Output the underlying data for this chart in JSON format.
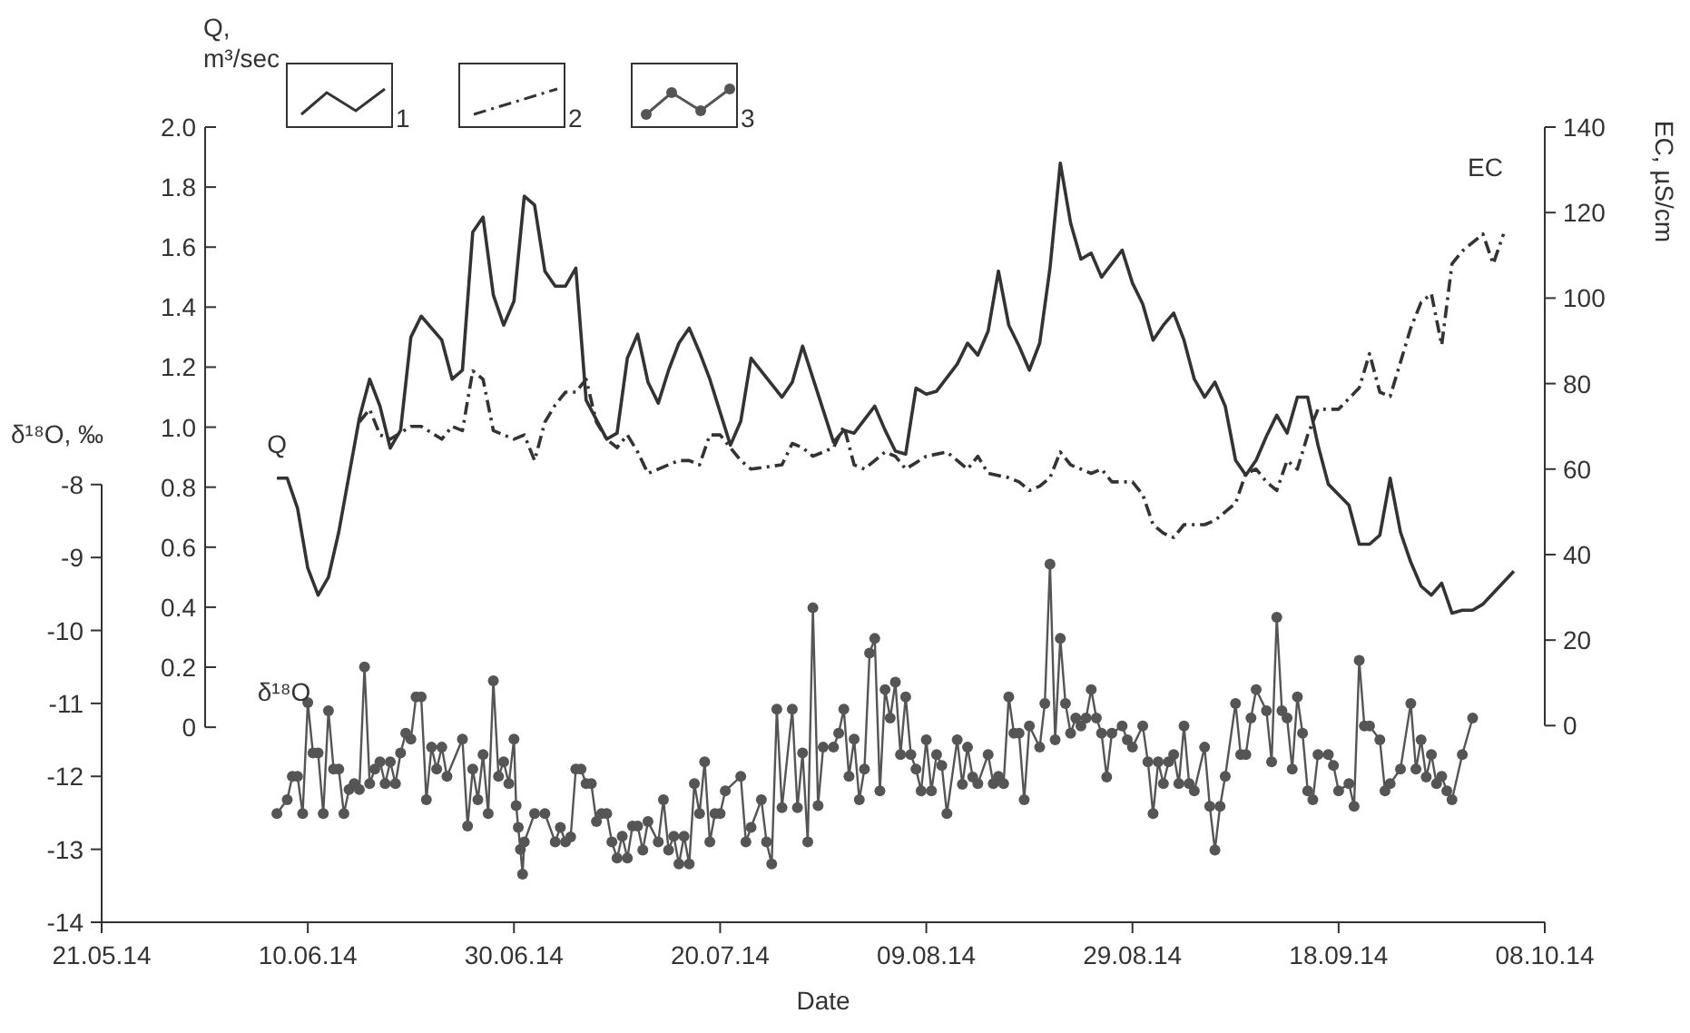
{
  "chart_data": {
    "type": "line",
    "xlabel": "Date",
    "ylabel": "Q, m³/sec",
    "y2label": "EC, µS/cm",
    "y3label": "δ¹⁸O, ‰",
    "xlim": [
      "2014-05-21",
      "2014-10-08"
    ],
    "xticks": [
      {
        "value": "2014-05-21",
        "label": "21.05.14"
      },
      {
        "value": "2014-06-10",
        "label": "10.06.14"
      },
      {
        "value": "2014-06-30",
        "label": "30.06.14"
      },
      {
        "value": "2014-07-20",
        "label": "20.07.14"
      },
      {
        "value": "2014-08-09",
        "label": "09.08.14"
      },
      {
        "value": "2014-08-29",
        "label": "29.08.14"
      },
      {
        "value": "2014-09-18",
        "label": "18.09.14"
      },
      {
        "value": "2014-10-08",
        "label": "08.10.14"
      }
    ],
    "ylim": [
      -0.65,
      2
    ],
    "yticks": [
      0,
      0.2,
      0.4,
      0.6,
      0.8,
      {
        "value": 1,
        "label": "1.0"
      },
      1.2,
      1.4,
      1.6,
      1.8,
      {
        "value": 2,
        "label": "2.0"
      }
    ],
    "y2lim": [
      -46,
      140
    ],
    "y2ticks": [
      0,
      20,
      40,
      60,
      80,
      100,
      120,
      140
    ],
    "y3lim": [
      -14,
      -3.1
    ],
    "y3ticks": [
      -14,
      -13,
      -12,
      -11,
      -10,
      -9,
      -8
    ],
    "grid": false,
    "legend": "top left",
    "annotations": [
      "Q",
      "EC",
      "δ¹⁸O"
    ],
    "series": [
      {
        "name": "1",
        "color": "#333333",
        "line_style": "solid",
        "marker": "none",
        "x": [
          "2014-06-07",
          "2014-06-08",
          "2014-06-09",
          "2014-06-10",
          "2014-06-11",
          "2014-06-12",
          "2014-06-13",
          "2014-06-15",
          "2014-06-16",
          "2014-06-17",
          "2014-06-18",
          "2014-06-19",
          "2014-06-20",
          "2014-06-21",
          "2014-06-23",
          "2014-06-24",
          "2014-06-25",
          "2014-06-26",
          "2014-06-27",
          "2014-06-28",
          "2014-06-29",
          "2014-06-30",
          "2014-07-01",
          "2014-07-02",
          "2014-07-03",
          "2014-07-04",
          "2014-07-05",
          "2014-07-06",
          "2014-07-07",
          "2014-07-09",
          "2014-07-10",
          "2014-07-11",
          "2014-07-12",
          "2014-07-13",
          "2014-07-14",
          "2014-07-15",
          "2014-07-16",
          "2014-07-17",
          "2014-07-18",
          "2014-07-19",
          "2014-07-21",
          "2014-07-22",
          "2014-07-23",
          "2014-07-26",
          "2014-07-27",
          "2014-07-28",
          "2014-07-31",
          "2014-08-01",
          "2014-08-02",
          "2014-08-04",
          "2014-08-05",
          "2014-08-06",
          "2014-08-07",
          "2014-08-08",
          "2014-08-09",
          "2014-08-10",
          "2014-08-12",
          "2014-08-13",
          "2014-08-14",
          "2014-08-15",
          "2014-08-16",
          "2014-08-17",
          "2014-08-18",
          "2014-08-19",
          "2014-08-20",
          "2014-08-21",
          "2014-08-22",
          "2014-08-23",
          "2014-08-24",
          "2014-08-25",
          "2014-08-26",
          "2014-08-28",
          "2014-08-29",
          "2014-08-30",
          "2014-08-31",
          "2014-09-01",
          "2014-09-02",
          "2014-09-03",
          "2014-09-04",
          "2014-09-05",
          "2014-09-06",
          "2014-09-07",
          "2014-09-08",
          "2014-09-09",
          "2014-09-10",
          "2014-09-11",
          "2014-09-12",
          "2014-09-13",
          "2014-09-14",
          "2014-09-15",
          "2014-09-16",
          "2014-09-17",
          "2014-09-19",
          "2014-09-20",
          "2014-09-21",
          "2014-09-22",
          "2014-09-23",
          "2014-09-24",
          "2014-09-25",
          "2014-09-26",
          "2014-09-27",
          "2014-09-28",
          "2014-09-29",
          "2014-09-30",
          "2014-10-01",
          "2014-10-02",
          "2014-10-05"
        ],
        "values": [
          0.83,
          0.83,
          0.73,
          0.53,
          0.44,
          0.5,
          0.65,
          1.03,
          1.16,
          1.07,
          0.93,
          0.99,
          1.3,
          1.37,
          1.29,
          1.16,
          1.19,
          1.65,
          1.7,
          1.44,
          1.34,
          1.42,
          1.77,
          1.74,
          1.52,
          1.47,
          1.47,
          1.53,
          1.09,
          0.96,
          0.98,
          1.23,
          1.31,
          1.15,
          1.08,
          1.19,
          1.28,
          1.33,
          1.25,
          1.16,
          0.94,
          1.02,
          1.23,
          1.1,
          1.15,
          1.27,
          0.95,
          0.99,
          0.98,
          1.07,
          0.99,
          0.92,
          0.91,
          1.13,
          1.11,
          1.12,
          1.21,
          1.28,
          1.24,
          1.32,
          1.52,
          1.34,
          1.27,
          1.19,
          1.28,
          1.53,
          1.88,
          1.68,
          1.56,
          1.58,
          1.5,
          1.59,
          1.48,
          1.41,
          1.29,
          1.34,
          1.38,
          1.29,
          1.16,
          1.1,
          1.15,
          1.07,
          0.89,
          0.84,
          0.89,
          0.97,
          1.04,
          0.98,
          1.1,
          1.1,
          0.94,
          0.81,
          0.74,
          0.61,
          0.61,
          0.64,
          0.83,
          0.65,
          0.55,
          0.47,
          0.44,
          0.48,
          0.38,
          0.39,
          0.39,
          0.41,
          0.52
        ]
      },
      {
        "name": "2",
        "color": "#333333",
        "axis": "y2",
        "line_style": "dashed",
        "marker": "none",
        "x": [
          "2014-06-15",
          "2014-06-16",
          "2014-06-17",
          "2014-06-18",
          "2014-06-20",
          "2014-06-21",
          "2014-06-23",
          "2014-06-24",
          "2014-06-25",
          "2014-06-26",
          "2014-06-27",
          "2014-06-28",
          "2014-06-30",
          "2014-07-01",
          "2014-07-02",
          "2014-07-03",
          "2014-07-04",
          "2014-07-05",
          "2014-07-06",
          "2014-07-07",
          "2014-07-08",
          "2014-07-09",
          "2014-07-10",
          "2014-07-11",
          "2014-07-12",
          "2014-07-13",
          "2014-07-15",
          "2014-07-16",
          "2014-07-17",
          "2014-07-18",
          "2014-07-19",
          "2014-07-20",
          "2014-07-22",
          "2014-07-23",
          "2014-07-26",
          "2014-07-27",
          "2014-07-28",
          "2014-07-29",
          "2014-07-30",
          "2014-07-31",
          "2014-08-01",
          "2014-08-02",
          "2014-08-03",
          "2014-08-04",
          "2014-08-05",
          "2014-08-06",
          "2014-08-07",
          "2014-08-09",
          "2014-08-11",
          "2014-08-12",
          "2014-08-13",
          "2014-08-14",
          "2014-08-15",
          "2014-08-17",
          "2014-08-18",
          "2014-08-19",
          "2014-08-20",
          "2014-08-21",
          "2014-08-22",
          "2014-08-23",
          "2014-08-25",
          "2014-08-26",
          "2014-08-27",
          "2014-08-29",
          "2014-08-30",
          "2014-08-31",
          "2014-09-01",
          "2014-09-02",
          "2014-09-03",
          "2014-09-05",
          "2014-09-06",
          "2014-09-08",
          "2014-09-09",
          "2014-09-10",
          "2014-09-11",
          "2014-09-12",
          "2014-09-13",
          "2014-09-14",
          "2014-09-15",
          "2014-09-16",
          "2014-09-18",
          "2014-09-20",
          "2014-09-21",
          "2014-09-22",
          "2014-09-23",
          "2014-09-24",
          "2014-09-25",
          "2014-09-26",
          "2014-09-27",
          "2014-09-28",
          "2014-09-29",
          "2014-09-30",
          "2014-10-02",
          "2014-10-03",
          "2014-10-04"
        ],
        "values": [
          71,
          74,
          68,
          67,
          70,
          70,
          67,
          70,
          69,
          83,
          81,
          69,
          67,
          68,
          62,
          71,
          75,
          78,
          78,
          81,
          71,
          67,
          65,
          68,
          64,
          59,
          61,
          62,
          62,
          61,
          68,
          68,
          62,
          60,
          61,
          66,
          65,
          63,
          64,
          65,
          70,
          61,
          60,
          62,
          64,
          63,
          60,
          63,
          64,
          62,
          60,
          63,
          59,
          58,
          57,
          55,
          56,
          58,
          64,
          61,
          59,
          60,
          57,
          57,
          54,
          47,
          45,
          44,
          47,
          47,
          48,
          52,
          59,
          60,
          57,
          55,
          62,
          60,
          68,
          74,
          74,
          79,
          87,
          78,
          77,
          85,
          93,
          99,
          101,
          89,
          108,
          111,
          115,
          108,
          115
        ]
      },
      {
        "name": "3",
        "color": "#555555",
        "axis": "y3",
        "line_style": "solid",
        "marker": "circle",
        "x": [
          "2014-06-07",
          "2014-06-08",
          "2014-06-08T12:00",
          "2014-06-09",
          "2014-06-09T12:00",
          "2014-06-10",
          "2014-06-10T12:00",
          "2014-06-11",
          "2014-06-11T12:00",
          "2014-06-12",
          "2014-06-12T12:00",
          "2014-06-13",
          "2014-06-13T12:00",
          "2014-06-14",
          "2014-06-14T12:00",
          "2014-06-15",
          "2014-06-15T12:00",
          "2014-06-16",
          "2014-06-16T12:00",
          "2014-06-17",
          "2014-06-17T12:00",
          "2014-06-18",
          "2014-06-18T12:00",
          "2014-06-19",
          "2014-06-19T12:00",
          "2014-06-20",
          "2014-06-20T12:00",
          "2014-06-21",
          "2014-06-21T12:00",
          "2014-06-22",
          "2014-06-22T12:00",
          "2014-06-23",
          "2014-06-23T12:00",
          "2014-06-25",
          "2014-06-25T12:00",
          "2014-06-26",
          "2014-06-26T12:00",
          "2014-06-27",
          "2014-06-27T12:00",
          "2014-06-28",
          "2014-06-28T12:00",
          "2014-06-29",
          "2014-06-29T12:00",
          "2014-06-30",
          "2014-06-30T05:00",
          "2014-06-30T10:00",
          "2014-06-30T15:00",
          "2014-06-30T20:00",
          "2014-07-01",
          "2014-07-02",
          "2014-07-03",
          "2014-07-04",
          "2014-07-04T12:00",
          "2014-07-05",
          "2014-07-05T12:00",
          "2014-07-06",
          "2014-07-06T12:00",
          "2014-07-07",
          "2014-07-07T12:00",
          "2014-07-08",
          "2014-07-08T12:00",
          "2014-07-09",
          "2014-07-09T12:00",
          "2014-07-10",
          "2014-07-10T12:00",
          "2014-07-11",
          "2014-07-11T12:00",
          "2014-07-12",
          "2014-07-12T12:00",
          "2014-07-13",
          "2014-07-14",
          "2014-07-14T12:00",
          "2014-07-15",
          "2014-07-15T12:00",
          "2014-07-16",
          "2014-07-16T12:00",
          "2014-07-17",
          "2014-07-17T12:00",
          "2014-07-18",
          "2014-07-18T12:00",
          "2014-07-19",
          "2014-07-19T12:00",
          "2014-07-20",
          "2014-07-20T12:00",
          "2014-07-22",
          "2014-07-22T12:00",
          "2014-07-23",
          "2014-07-24",
          "2014-07-24T12:00",
          "2014-07-25",
          "2014-07-25T12:00",
          "2014-07-26",
          "2014-07-27",
          "2014-07-27T12:00",
          "2014-07-28",
          "2014-07-28T12:00",
          "2014-07-29",
          "2014-07-29T12:00",
          "2014-07-30",
          "2014-07-31",
          "2014-07-31T12:00",
          "2014-08-01",
          "2014-08-01T12:00",
          "2014-08-02",
          "2014-08-02T12:00",
          "2014-08-03",
          "2014-08-03T12:00",
          "2014-08-04",
          "2014-08-04T12:00",
          "2014-08-05",
          "2014-08-05T12:00",
          "2014-08-06",
          "2014-08-06T12:00",
          "2014-08-07",
          "2014-08-07T12:00",
          "2014-08-08",
          "2014-08-08T12:00",
          "2014-08-09",
          "2014-08-09T12:00",
          "2014-08-10",
          "2014-08-10T12:00",
          "2014-08-11",
          "2014-08-12",
          "2014-08-12T12:00",
          "2014-08-13",
          "2014-08-13T12:00",
          "2014-08-14",
          "2014-08-15",
          "2014-08-15T12:00",
          "2014-08-16",
          "2014-08-16T12:00",
          "2014-08-17",
          "2014-08-17T12:00",
          "2014-08-18",
          "2014-08-18T12:00",
          "2014-08-19",
          "2014-08-20",
          "2014-08-20T12:00",
          "2014-08-21",
          "2014-08-21T12:00",
          "2014-08-22",
          "2014-08-22T12:00",
          "2014-08-23",
          "2014-08-23T12:00",
          "2014-08-24",
          "2014-08-24T12:00",
          "2014-08-25",
          "2014-08-25T12:00",
          "2014-08-26",
          "2014-08-26T12:00",
          "2014-08-27",
          "2014-08-28",
          "2014-08-28T12:00",
          "2014-08-29",
          "2014-08-30",
          "2014-08-30T12:00",
          "2014-08-31",
          "2014-08-31T12:00",
          "2014-09-01",
          "2014-09-01T12:00",
          "2014-09-02",
          "2014-09-02T12:00",
          "2014-09-03",
          "2014-09-03T12:00",
          "2014-09-04",
          "2014-09-05",
          "2014-09-05T12:00",
          "2014-09-06",
          "2014-09-06T12:00",
          "2014-09-07",
          "2014-09-08",
          "2014-09-08T12:00",
          "2014-09-09",
          "2014-09-09T12:00",
          "2014-09-10",
          "2014-09-11",
          "2014-09-11T12:00",
          "2014-09-12",
          "2014-09-12T12:00",
          "2014-09-13",
          "2014-09-13T12:00",
          "2014-09-14",
          "2014-09-14T12:00",
          "2014-09-15",
          "2014-09-15T12:00",
          "2014-09-16",
          "2014-09-17",
          "2014-09-17T12:00",
          "2014-09-18",
          "2014-09-19",
          "2014-09-19T12:00",
          "2014-09-20",
          "2014-09-20T12:00",
          "2014-09-21",
          "2014-09-22",
          "2014-09-22T12:00",
          "2014-09-23",
          "2014-09-24",
          "2014-09-25",
          "2014-09-25T12:00",
          "2014-09-26",
          "2014-09-26T12:00",
          "2014-09-27",
          "2014-09-27T12:00",
          "2014-09-28",
          "2014-09-28T12:00",
          "2014-09-29",
          "2014-09-30",
          "2014-10-01"
        ],
        "values": [
          -12.51,
          -12.32,
          -12.0,
          -12.0,
          -12.51,
          -10.99,
          -11.68,
          -11.68,
          -12.51,
          -11.1,
          -11.9,
          -11.9,
          -12.51,
          -12.18,
          -12.1,
          -12.18,
          -10.5,
          -12.1,
          -11.9,
          -11.8,
          -12.1,
          -11.8,
          -12.1,
          -11.68,
          -11.41,
          -11.49,
          -10.91,
          -10.91,
          -12.32,
          -11.6,
          -11.9,
          -11.6,
          -12.0,
          -11.49,
          -12.68,
          -11.9,
          -12.32,
          -11.7,
          -12.51,
          -10.69,
          -12.0,
          -11.8,
          -12.1,
          -11.49,
          -12.4,
          -12.7,
          -13.0,
          -13.34,
          -12.9,
          -12.51,
          -12.51,
          -12.9,
          -12.7,
          -12.9,
          -12.83,
          -11.9,
          -11.9,
          -12.1,
          -12.1,
          -12.62,
          -12.51,
          -12.51,
          -12.9,
          -13.12,
          -12.82,
          -13.12,
          -12.68,
          -12.68,
          -13.01,
          -12.62,
          -12.9,
          -12.32,
          -13.01,
          -12.82,
          -13.2,
          -12.82,
          -13.2,
          -12.1,
          -12.51,
          -11.8,
          -12.9,
          -12.51,
          -12.51,
          -12.2,
          -12.0,
          -12.9,
          -12.7,
          -12.32,
          -12.9,
          -13.2,
          -11.08,
          -12.43,
          -11.08,
          -12.43,
          -11.68,
          -12.9,
          -9.69,
          -12.4,
          -11.6,
          -11.6,
          -11.41,
          -11.08,
          -12.0,
          -11.49,
          -12.32,
          -11.9,
          -10.31,
          -10.11,
          -12.2,
          -10.81,
          -11.2,
          -10.71,
          -11.7,
          -10.91,
          -11.7,
          -11.9,
          -12.2,
          -11.5,
          -12.2,
          -11.7,
          -11.85,
          -12.51,
          -11.5,
          -12.11,
          -11.6,
          -12.01,
          -12.1,
          -11.7,
          -12.1,
          -12.0,
          -12.1,
          -10.91,
          -11.41,
          -11.41,
          -12.32,
          -11.31,
          -11.6,
          -11.0,
          -9.09,
          -11.5,
          -10.11,
          -11.0,
          -11.41,
          -11.2,
          -11.31,
          -11.2,
          -10.81,
          -11.2,
          -11.41,
          -12.01,
          -11.41,
          -11.31,
          -11.5,
          -11.6,
          -11.31,
          -11.8,
          -12.51,
          -11.8,
          -12.1,
          -11.8,
          -11.7,
          -12.1,
          -11.31,
          -12.1,
          -12.2,
          -11.6,
          -12.41,
          -13.01,
          -12.41,
          -12.0,
          -11.0,
          -11.7,
          -11.7,
          -11.2,
          -10.81,
          -11.1,
          -11.8,
          -9.82,
          -11.1,
          -11.2,
          -11.9,
          -10.91,
          -11.41,
          -12.2,
          -12.32,
          -11.7,
          -11.7,
          -11.85,
          -12.2,
          -12.1,
          -12.41,
          -10.41,
          -11.31,
          -11.31,
          -11.5,
          -12.2,
          -12.1,
          -11.9,
          -11.0,
          -11.9,
          -11.5,
          -12.01,
          -11.7,
          -12.1,
          -12.0,
          -12.2,
          -12.32,
          -11.7,
          -11.2
        ]
      }
    ]
  }
}
